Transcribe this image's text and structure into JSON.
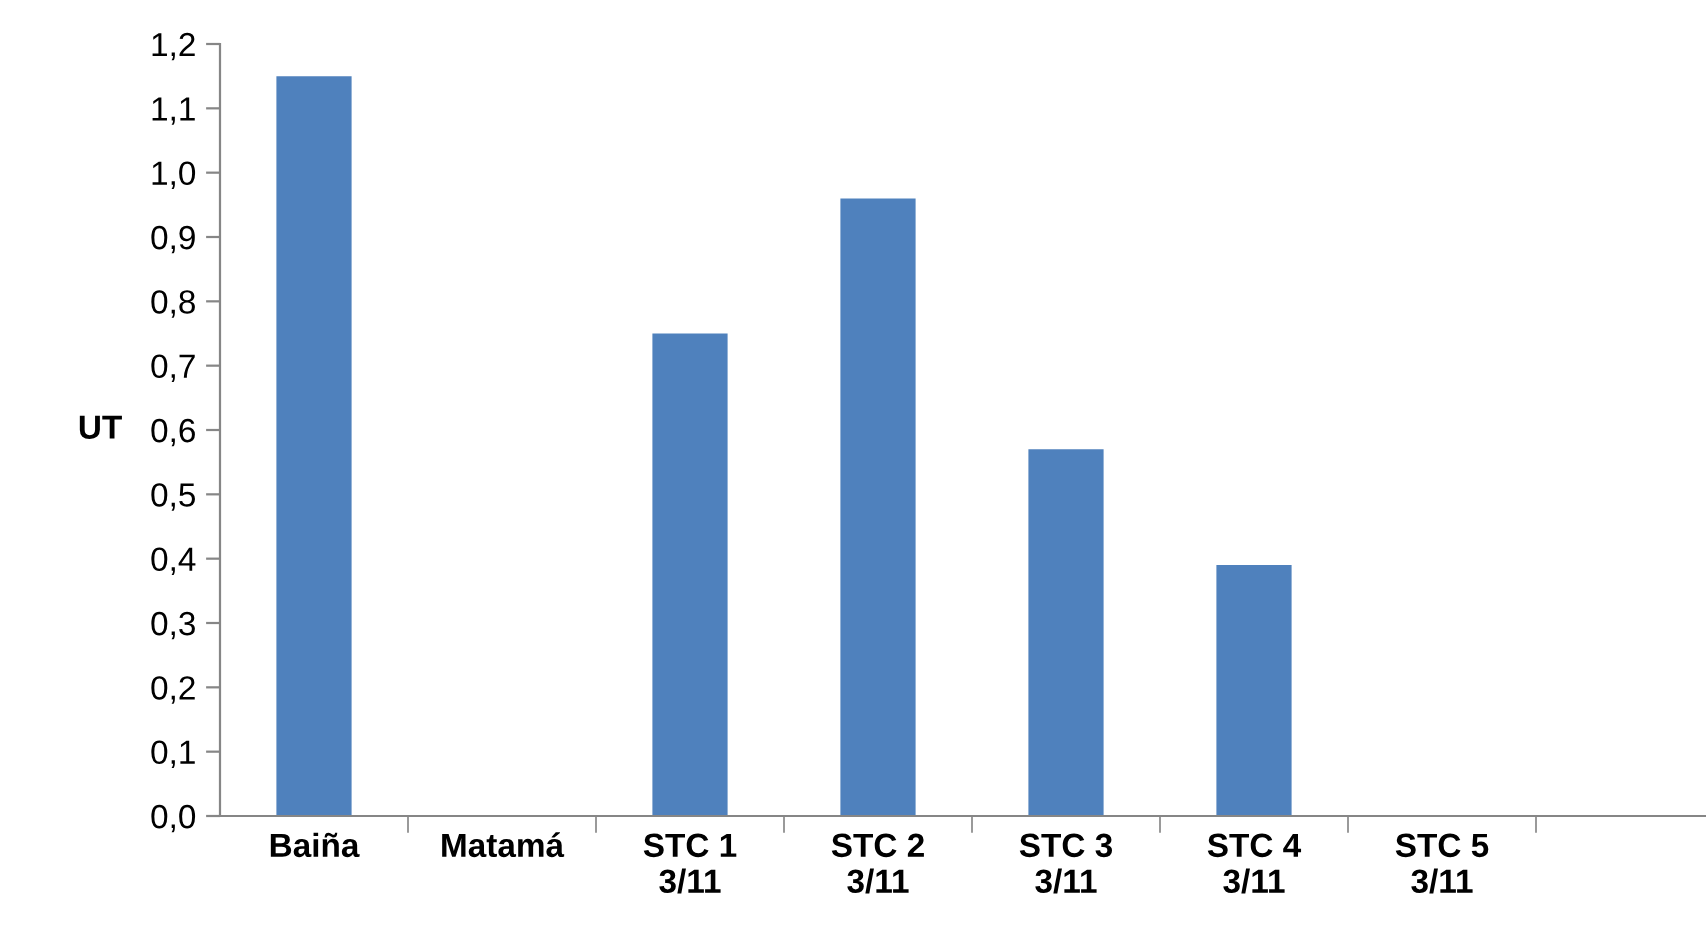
{
  "chart_data": {
    "type": "bar",
    "ylabel": "UT",
    "categories": [
      "Baiña",
      "Matamá",
      "STC 1\n3/11",
      "STC 2\n3/11",
      "STC 3\n3/11",
      "STC 4\n3/11",
      "STC 5\n3/11",
      null
    ],
    "values": [
      1.15,
      null,
      0.75,
      0.96,
      0.57,
      0.39,
      null,
      null
    ],
    "color": "#4f81bd",
    "ylim": [
      0,
      1.2
    ],
    "yticks": [
      {
        "value": 0,
        "label": "0,0"
      },
      {
        "value": 0.1,
        "label": "0,1"
      },
      {
        "value": 0.2,
        "label": "0,2"
      },
      {
        "value": 0.3,
        "label": "0,3"
      },
      {
        "value": 0.4,
        "label": "0,4"
      },
      {
        "value": 0.5,
        "label": "0,5"
      },
      {
        "value": 0.6,
        "label": "0,6"
      },
      {
        "value": 0.7,
        "label": "0,7"
      },
      {
        "value": 0.8,
        "label": "0,8"
      },
      {
        "value": 0.9,
        "label": "0,9"
      },
      {
        "value": 1.0,
        "label": "1,0"
      },
      {
        "value": 1.1,
        "label": "1,1"
      },
      {
        "value": 1.2,
        "label": "1,2"
      }
    ],
    "grid": false,
    "legend": false
  }
}
